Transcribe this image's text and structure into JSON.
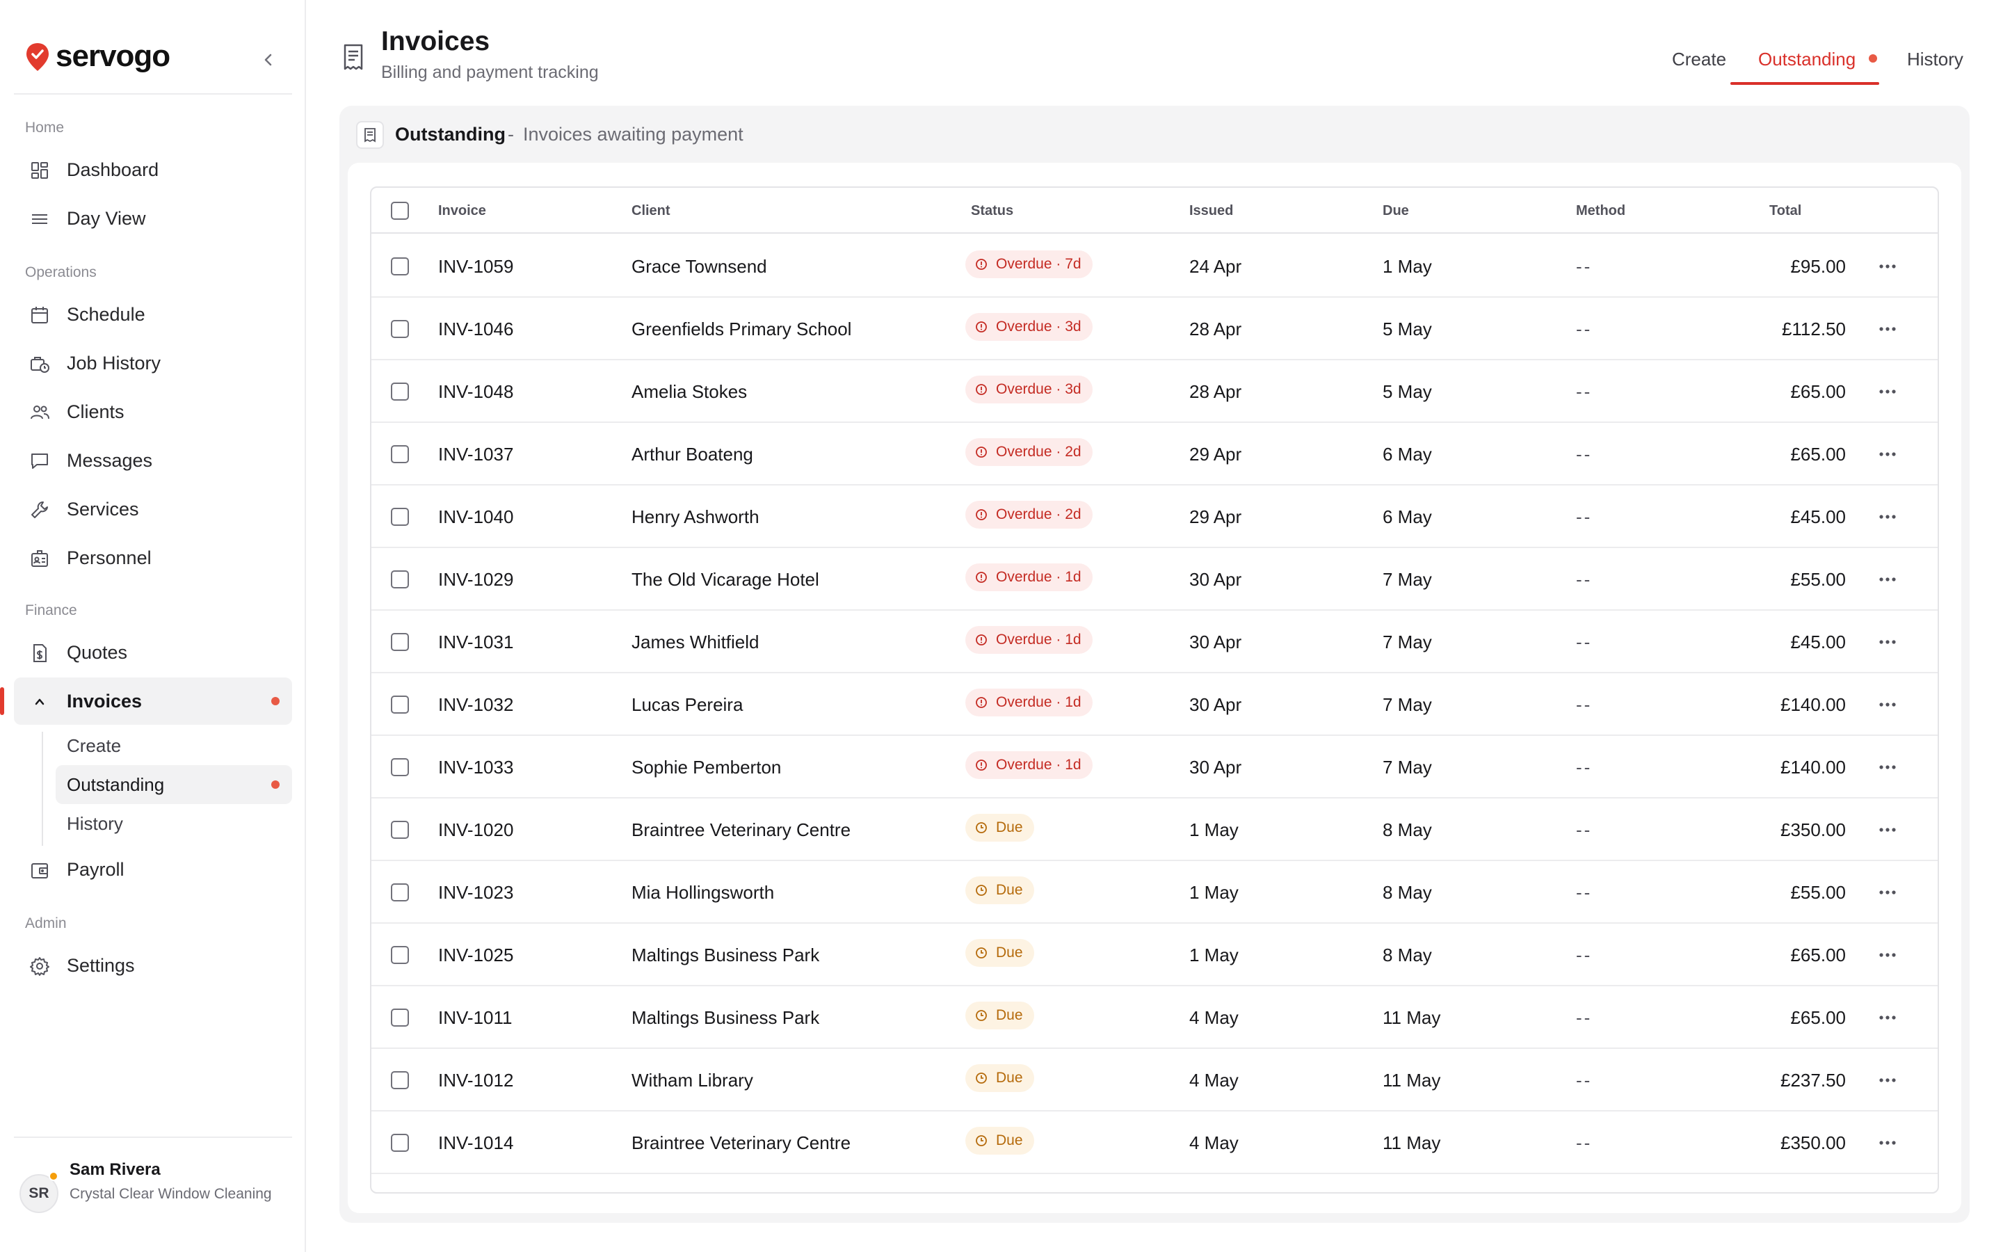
{
  "brand": {
    "name": "servogo",
    "accent": "#e23b2e"
  },
  "sidebar": {
    "sections": {
      "home": "Home",
      "operations": "Operations",
      "finance": "Finance",
      "admin": "Admin"
    },
    "items": {
      "dashboard": "Dashboard",
      "day_view": "Day View",
      "schedule": "Schedule",
      "job_history": "Job History",
      "clients": "Clients",
      "messages": "Messages",
      "services": "Services",
      "personnel": "Personnel",
      "quotes": "Quotes",
      "invoices": "Invoices",
      "payroll": "Payroll",
      "settings": "Settings"
    },
    "invoices_sub": {
      "create": "Create",
      "outstanding": "Outstanding",
      "history": "History"
    }
  },
  "user": {
    "initials": "SR",
    "name": "Sam Rivera",
    "org": "Crystal Clear Window Cleaning"
  },
  "header": {
    "title": "Invoices",
    "subtitle": "Billing and payment tracking",
    "tabs": {
      "create": "Create",
      "outstanding": "Outstanding",
      "history": "History"
    }
  },
  "panel": {
    "title": "Outstanding",
    "separator": "-",
    "description": "Invoices awaiting payment"
  },
  "table": {
    "columns": {
      "invoice": "Invoice",
      "client": "Client",
      "status": "Status",
      "issued": "Issued",
      "due": "Due",
      "method": "Method",
      "total": "Total"
    },
    "rows": [
      {
        "invoice": "INV-1059",
        "client": "Grace Townsend",
        "status": "Overdue · 7d",
        "kind": "overdue",
        "issued": "24 Apr",
        "due": "1 May",
        "method": "--",
        "total": "£95.00"
      },
      {
        "invoice": "INV-1046",
        "client": "Greenfields Primary School",
        "status": "Overdue · 3d",
        "kind": "overdue",
        "issued": "28 Apr",
        "due": "5 May",
        "method": "--",
        "total": "£112.50"
      },
      {
        "invoice": "INV-1048",
        "client": "Amelia Stokes",
        "status": "Overdue · 3d",
        "kind": "overdue",
        "issued": "28 Apr",
        "due": "5 May",
        "method": "--",
        "total": "£65.00"
      },
      {
        "invoice": "INV-1037",
        "client": "Arthur Boateng",
        "status": "Overdue · 2d",
        "kind": "overdue",
        "issued": "29 Apr",
        "due": "6 May",
        "method": "--",
        "total": "£65.00"
      },
      {
        "invoice": "INV-1040",
        "client": "Henry Ashworth",
        "status": "Overdue · 2d",
        "kind": "overdue",
        "issued": "29 Apr",
        "due": "6 May",
        "method": "--",
        "total": "£45.00"
      },
      {
        "invoice": "INV-1029",
        "client": "The Old Vicarage Hotel",
        "status": "Overdue · 1d",
        "kind": "overdue",
        "issued": "30 Apr",
        "due": "7 May",
        "method": "--",
        "total": "£55.00"
      },
      {
        "invoice": "INV-1031",
        "client": "James Whitfield",
        "status": "Overdue · 1d",
        "kind": "overdue",
        "issued": "30 Apr",
        "due": "7 May",
        "method": "--",
        "total": "£45.00"
      },
      {
        "invoice": "INV-1032",
        "client": "Lucas Pereira",
        "status": "Overdue · 1d",
        "kind": "overdue",
        "issued": "30 Apr",
        "due": "7 May",
        "method": "--",
        "total": "£140.00"
      },
      {
        "invoice": "INV-1033",
        "client": "Sophie Pemberton",
        "status": "Overdue · 1d",
        "kind": "overdue",
        "issued": "30 Apr",
        "due": "7 May",
        "method": "--",
        "total": "£140.00"
      },
      {
        "invoice": "INV-1020",
        "client": "Braintree Veterinary Centre",
        "status": "Due",
        "kind": "due",
        "issued": "1 May",
        "due": "8 May",
        "method": "--",
        "total": "£350.00"
      },
      {
        "invoice": "INV-1023",
        "client": "Mia Hollingsworth",
        "status": "Due",
        "kind": "due",
        "issued": "1 May",
        "due": "8 May",
        "method": "--",
        "total": "£55.00"
      },
      {
        "invoice": "INV-1025",
        "client": "Maltings Business Park",
        "status": "Due",
        "kind": "due",
        "issued": "1 May",
        "due": "8 May",
        "method": "--",
        "total": "£65.00"
      },
      {
        "invoice": "INV-1011",
        "client": "Maltings Business Park",
        "status": "Due",
        "kind": "due",
        "issued": "4 May",
        "due": "11 May",
        "method": "--",
        "total": "£65.00"
      },
      {
        "invoice": "INV-1012",
        "client": "Witham Library",
        "status": "Due",
        "kind": "due",
        "issued": "4 May",
        "due": "11 May",
        "method": "--",
        "total": "£237.50"
      },
      {
        "invoice": "INV-1014",
        "client": "Braintree Veterinary Centre",
        "status": "Due",
        "kind": "due",
        "issued": "4 May",
        "due": "11 May",
        "method": "--",
        "total": "£350.00"
      }
    ]
  }
}
